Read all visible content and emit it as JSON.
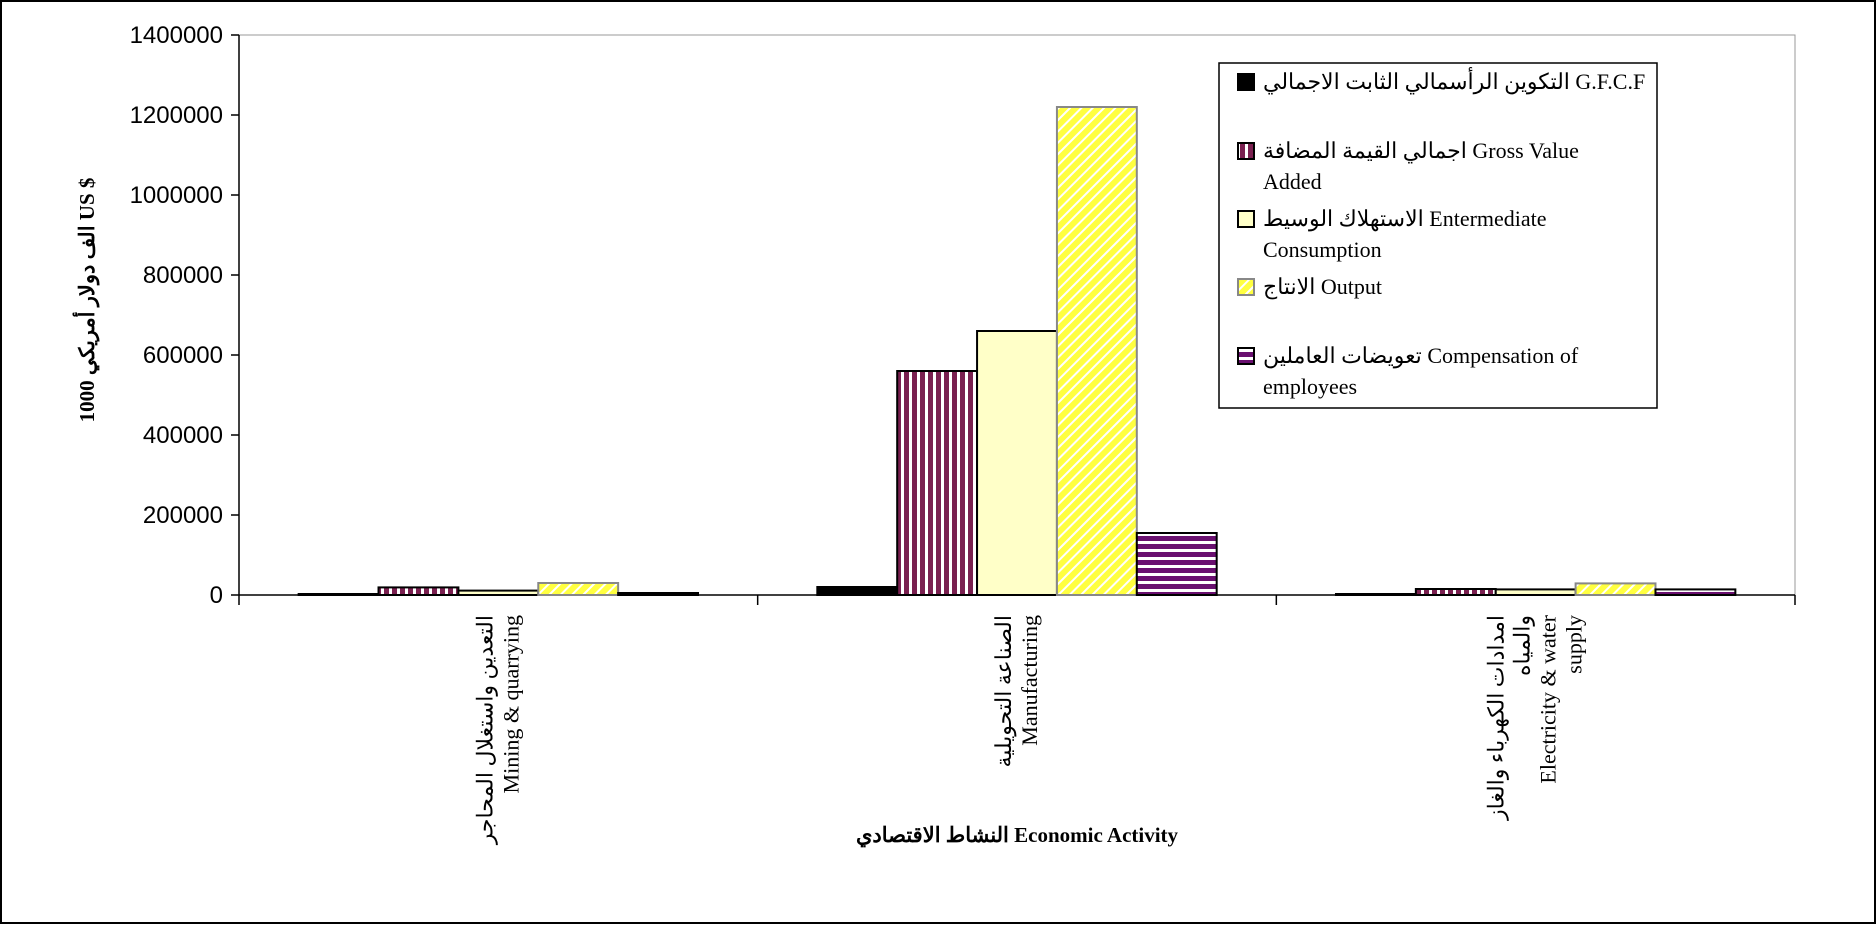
{
  "chart_data": {
    "type": "bar",
    "xlabel": "النشاط الاقتصادي Economic Activity",
    "ylabel": "الف دولار أمريكي 1000 US $",
    "ylim": [
      0,
      1400000
    ],
    "yticks": [
      0,
      200000,
      400000,
      600000,
      800000,
      1000000,
      1200000,
      1400000
    ],
    "grid": false,
    "legend_position": "top-right",
    "categories": [
      {
        "lines": [
          "التعدين واستغلال المحاجر",
          "Mining & quarrying"
        ]
      },
      {
        "lines": [
          "الصناعة التحويلية",
          "Manufacturing"
        ]
      },
      {
        "lines": [
          "امدادات الكهرباء والغاز",
          "والمياه",
          "Electricity & water",
          "supply"
        ]
      }
    ],
    "series": [
      {
        "name_lines": [
          "التكوين الرأسمالي الثابت الاجمالي G.F.C.F"
        ],
        "values": [
          2000,
          20000,
          1500
        ],
        "color": "#000000",
        "pattern": "solid"
      },
      {
        "name_lines": [
          "اجمالي القيمة المضافة Gross Value",
          "Added"
        ],
        "values": [
          19000,
          560000,
          15000
        ],
        "color": "#7a2050",
        "pattern": "vertical-stripes"
      },
      {
        "name_lines": [
          "الاستهلاك الوسيط Entermediate",
          "Consumption"
        ],
        "values": [
          11000,
          660000,
          14000
        ],
        "color": "#ffffc8",
        "pattern": "solid"
      },
      {
        "name_lines": [
          "الانتاج Output"
        ],
        "values": [
          30000,
          1220000,
          29000
        ],
        "color": "#ffff40",
        "pattern": "diagonal-stripes"
      },
      {
        "name_lines": [
          "تعويضات العاملين Compensation of",
          "employees"
        ],
        "values": [
          5000,
          155000,
          14000
        ],
        "color": "#7a2050",
        "pattern": "horizontal-stripes"
      }
    ]
  }
}
